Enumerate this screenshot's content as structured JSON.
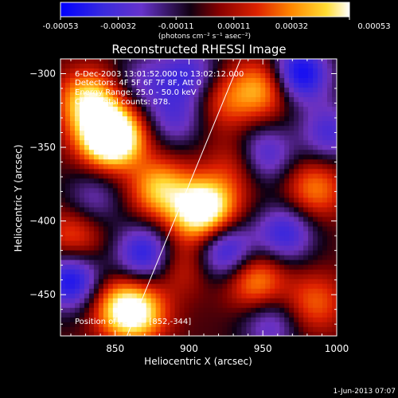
{
  "colorbar": {
    "tick_labels": [
      "-0.00053",
      "-0.00032",
      "-0.00011",
      "0.00011",
      "0.00032",
      "0.00053"
    ],
    "unit_label": "(photons cm⁻² s⁻¹ asec⁻²)"
  },
  "chart_data": {
    "type": "heatmap",
    "title": "Reconstructed RHESSI Image",
    "xlabel": "Heliocentric X (arcsec)",
    "ylabel": "Heliocentric Y (arcsec)",
    "xlim": [
      813,
      1000
    ],
    "ylim": [
      -478,
      -290
    ],
    "x_ticks": [
      850,
      900,
      950,
      1000
    ],
    "y_ticks": [
      -300,
      -350,
      -400,
      -450
    ],
    "x_tick_labels": [
      "850",
      "900",
      "950",
      "1000"
    ],
    "y_tick_labels": [
      "−300",
      "−350",
      "−400",
      "−450"
    ],
    "zlim": [
      -0.00053,
      0.00053
    ],
    "colormap": [
      "#0000ff",
      "#6633cc",
      "#000000",
      "#aa0000",
      "#ff6600",
      "#ffdd33",
      "#ffffff"
    ],
    "peak": [
      852,
      -344
    ],
    "limb_line": [
      [
        858,
        -478
      ],
      [
        935,
        -290
      ]
    ],
    "blobs": [
      {
        "x": 843,
        "y": -341,
        "v": 0.00053
      },
      {
        "x": 832,
        "y": -318,
        "v": 0.00045
      },
      {
        "x": 852,
        "y": -344,
        "v": 0.0004
      },
      {
        "x": 880,
        "y": -378,
        "v": 0.0004
      },
      {
        "x": 905,
        "y": -395,
        "v": 0.0004
      },
      {
        "x": 915,
        "y": -388,
        "v": 0.00036
      },
      {
        "x": 865,
        "y": -462,
        "v": 0.00045
      },
      {
        "x": 852,
        "y": -458,
        "v": 0.0003
      },
      {
        "x": 945,
        "y": -440,
        "v": 0.00035
      },
      {
        "x": 950,
        "y": -310,
        "v": 0.00035
      },
      {
        "x": 925,
        "y": -318,
        "v": 0.00022
      },
      {
        "x": 985,
        "y": -378,
        "v": 0.0003
      },
      {
        "x": 822,
        "y": -410,
        "v": 0.00025
      },
      {
        "x": 895,
        "y": -430,
        "v": 0.00018
      },
      {
        "x": 985,
        "y": -455,
        "v": 0.00025
      },
      {
        "x": 935,
        "y": -360,
        "v": 0.0002
      },
      {
        "x": 975,
        "y": -300,
        "v": -0.0005
      },
      {
        "x": 820,
        "y": -440,
        "v": -0.00045
      },
      {
        "x": 925,
        "y": -420,
        "v": -0.0004
      },
      {
        "x": 900,
        "y": -300,
        "v": -0.0003
      },
      {
        "x": 965,
        "y": -408,
        "v": -0.00035
      },
      {
        "x": 950,
        "y": -355,
        "v": -0.00035
      },
      {
        "x": 870,
        "y": -422,
        "v": -0.0004
      },
      {
        "x": 995,
        "y": -340,
        "v": -0.0003
      },
      {
        "x": 890,
        "y": -330,
        "v": -0.00025
      },
      {
        "x": 955,
        "y": -470,
        "v": -0.00025
      },
      {
        "x": 835,
        "y": -385,
        "v": -0.0002
      },
      {
        "x": 870,
        "y": -305,
        "v": -0.0002
      }
    ]
  },
  "annotations": {
    "time": "6-Dec-2003 13:01:52.000 to 13:02:12.000",
    "detectors": "Detectors: 4F 5F 6F 7F 8F, Att 0",
    "energy": "Energy Range: 25.0 - 50.0 keV",
    "clean": "Clean    Total counts: 878.",
    "peak": "Position of Peak = [852,-344]"
  },
  "footer": {
    "date": "1-Jun-2013 07:07"
  }
}
